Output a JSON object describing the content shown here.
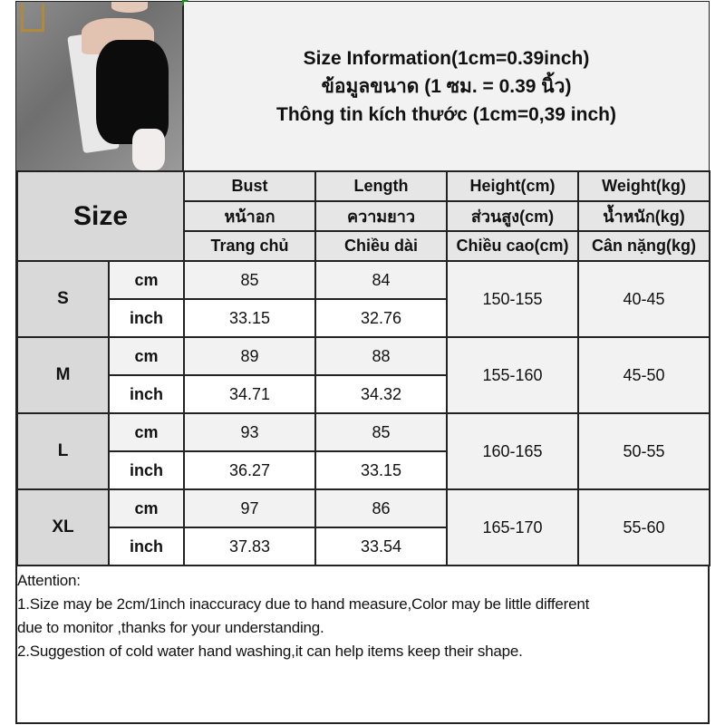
{
  "title": {
    "line1": "Size Information(1cm=0.39inch)",
    "line2": "ข้อมูลขนาด (1 ซม. = 0.39 นิ้ว)",
    "line3": "Thông tin kích thước (1cm=0,39 inch)"
  },
  "header": {
    "size_label": "Size",
    "columns": [
      {
        "en": "Bust",
        "th": "หน้าอก",
        "vi": "Trang chủ"
      },
      {
        "en": "Length",
        "th": "ความยาว",
        "vi": "Chiều dài"
      },
      {
        "en": "Height(cm)",
        "th": "ส่วนสูง(cm)",
        "vi": "Chiều cao(cm)"
      },
      {
        "en": "Weight(kg)",
        "th": "น้ำหนัก(kg)",
        "vi": "Cân nặng(kg)"
      }
    ]
  },
  "sizes": [
    {
      "size": "S",
      "cm_label": "cm",
      "inch_label": "inch",
      "bust_cm": "85",
      "length_cm": "84",
      "bust_inch": "33.15",
      "length_inch": "32.76",
      "height": "150-155",
      "weight": "40-45"
    },
    {
      "size": "M",
      "cm_label": "cm",
      "inch_label": "inch",
      "bust_cm": "89",
      "length_cm": "88",
      "bust_inch": "34.71",
      "length_inch": "34.32",
      "height": "155-160",
      "weight": "45-50"
    },
    {
      "size": "L",
      "cm_label": "cm",
      "inch_label": "inch",
      "bust_cm": "93",
      "length_cm": "85",
      "bust_inch": "36.27",
      "length_inch": "33.15",
      "height": "160-165",
      "weight": "50-55"
    },
    {
      "size": "XL",
      "cm_label": "cm",
      "inch_label": "inch",
      "bust_cm": "97",
      "length_cm": "86",
      "bust_inch": "37.83",
      "length_inch": "33.54",
      "height": "165-170",
      "weight": "55-60"
    }
  ],
  "notes": {
    "heading": "Attention:",
    "line1": "1.Size may be 2cm/1inch inaccuracy due to hand measure,Color may be little different",
    "line2": "due to monitor ,thanks for your understanding.",
    "line3": "2.Suggestion of cold water hand washing,it can help items keep their shape."
  }
}
